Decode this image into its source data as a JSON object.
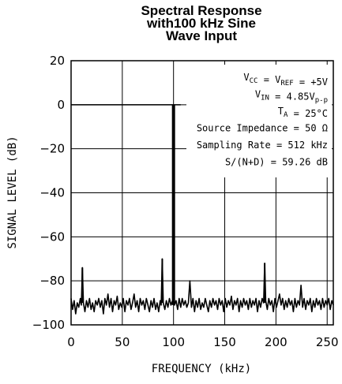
{
  "chart_data": {
    "type": "line",
    "title_lines": [
      "Spectral Response",
      "with100 kHz Sine",
      "Wave Input"
    ],
    "xlabel": "FREQUENCY (kHz)",
    "ylabel": "SIGNAL LEVEL (dB)",
    "xlim": [
      0,
      256
    ],
    "ylim": [
      -100,
      20
    ],
    "xticks": [
      0,
      50,
      100,
      150,
      200,
      250
    ],
    "yticks": [
      20,
      0,
      -20,
      -40,
      -60,
      -80,
      -100
    ],
    "grid": true,
    "annotations": [
      {
        "parts": [
          {
            "t": "V"
          },
          {
            "t": "CC",
            "sub": true
          },
          {
            "t": " = V"
          },
          {
            "t": "REF",
            "sub": true
          },
          {
            "t": " = +5V"
          }
        ]
      },
      {
        "parts": [
          {
            "t": "V"
          },
          {
            "t": "IN",
            "sub": true
          },
          {
            "t": " = 4.85V"
          },
          {
            "t": "p-p",
            "sub": true
          }
        ]
      },
      {
        "parts": [
          {
            "t": "T"
          },
          {
            "t": "A",
            "sub": true
          },
          {
            "t": " = 25°C"
          }
        ]
      },
      {
        "parts": [
          {
            "t": "Source Impedance = 50 Ω"
          }
        ]
      },
      {
        "parts": [
          {
            "t": "Sampling Rate = 512 kHz"
          }
        ]
      },
      {
        "parts": [
          {
            "t": "S/(N+D) = 59.26 dB"
          }
        ]
      }
    ],
    "series": [
      {
        "fundamental": {
          "x": 100,
          "y": 0
        },
        "fundamental_floor_line": [
          [
            0,
            0
          ],
          [
            107,
            0
          ]
        ],
        "spurs": [
          {
            "x": 11,
            "y": -74
          },
          {
            "x": 89,
            "y": -70
          },
          {
            "x": 189,
            "y": -72
          }
        ],
        "noise_floor": [
          [
            0,
            -88
          ],
          [
            1.5,
            -93
          ],
          [
            3,
            -89
          ],
          [
            4.5,
            -95
          ],
          [
            6,
            -90
          ],
          [
            7.5,
            -92
          ],
          [
            9,
            -88
          ],
          [
            10,
            -91
          ],
          [
            11,
            -74
          ],
          [
            12,
            -90
          ],
          [
            13.5,
            -94
          ],
          [
            15,
            -89
          ],
          [
            16.5,
            -92
          ],
          [
            18,
            -88
          ],
          [
            19.5,
            -93
          ],
          [
            21,
            -90
          ],
          [
            22.5,
            -94
          ],
          [
            24,
            -89
          ],
          [
            25.5,
            -91
          ],
          [
            27,
            -88
          ],
          [
            28.5,
            -92
          ],
          [
            30,
            -89
          ],
          [
            31.5,
            -95
          ],
          [
            33,
            -88
          ],
          [
            34.5,
            -91
          ],
          [
            36,
            -86
          ],
          [
            37.5,
            -92
          ],
          [
            39,
            -88
          ],
          [
            40.5,
            -94
          ],
          [
            42,
            -89
          ],
          [
            43.5,
            -91
          ],
          [
            45,
            -87
          ],
          [
            46.5,
            -93
          ],
          [
            48,
            -90
          ],
          [
            49.5,
            -92
          ],
          [
            51,
            -88
          ],
          [
            52.5,
            -94
          ],
          [
            54,
            -89
          ],
          [
            55.5,
            -91
          ],
          [
            57,
            -88
          ],
          [
            58.5,
            -93
          ],
          [
            60,
            -90
          ],
          [
            61.5,
            -86
          ],
          [
            63,
            -92
          ],
          [
            64.5,
            -89
          ],
          [
            66,
            -94
          ],
          [
            67.5,
            -88
          ],
          [
            69,
            -91
          ],
          [
            70.5,
            -89
          ],
          [
            72,
            -93
          ],
          [
            73.5,
            -88
          ],
          [
            75,
            -91
          ],
          [
            76.5,
            -94
          ],
          [
            78,
            -89
          ],
          [
            79.5,
            -92
          ],
          [
            81,
            -88
          ],
          [
            82.5,
            -93
          ],
          [
            84,
            -90
          ],
          [
            85.5,
            -94
          ],
          [
            87,
            -89
          ],
          [
            88,
            -91
          ],
          [
            89,
            -70
          ],
          [
            90,
            -90
          ],
          [
            91.5,
            -93
          ],
          [
            93,
            -89
          ],
          [
            94.5,
            -92
          ],
          [
            96,
            -88
          ],
          [
            97.5,
            -91
          ],
          [
            99,
            -89
          ],
          [
            100,
            -90
          ],
          [
            101,
            -91
          ],
          [
            102.5,
            -89
          ],
          [
            104,
            -93
          ],
          [
            105.5,
            -88
          ],
          [
            107,
            -92
          ],
          [
            108.5,
            -88
          ],
          [
            110,
            -91
          ],
          [
            111.5,
            -89
          ],
          [
            113,
            -92
          ],
          [
            114.5,
            -90
          ],
          [
            116,
            -80
          ],
          [
            117.5,
            -92
          ],
          [
            119,
            -88
          ],
          [
            120.5,
            -94
          ],
          [
            122,
            -89
          ],
          [
            123.5,
            -92
          ],
          [
            125,
            -88
          ],
          [
            126.5,
            -93
          ],
          [
            128,
            -90
          ],
          [
            129.5,
            -92
          ],
          [
            131,
            -88
          ],
          [
            132.5,
            -91
          ],
          [
            134,
            -94
          ],
          [
            135.5,
            -89
          ],
          [
            137,
            -92
          ],
          [
            138.5,
            -88
          ],
          [
            140,
            -91
          ],
          [
            141.5,
            -89
          ],
          [
            143,
            -93
          ],
          [
            144.5,
            -88
          ],
          [
            146,
            -91
          ],
          [
            147.5,
            -89
          ],
          [
            149,
            -94
          ],
          [
            150.5,
            -88
          ],
          [
            152,
            -92
          ],
          [
            153.5,
            -89
          ],
          [
            155,
            -91
          ],
          [
            156.5,
            -87
          ],
          [
            158,
            -93
          ],
          [
            159.5,
            -89
          ],
          [
            161,
            -91
          ],
          [
            162.5,
            -88
          ],
          [
            164,
            -94
          ],
          [
            165.5,
            -89
          ],
          [
            167,
            -92
          ],
          [
            168.5,
            -88
          ],
          [
            170,
            -91
          ],
          [
            171.5,
            -89
          ],
          [
            173,
            -93
          ],
          [
            174.5,
            -88
          ],
          [
            176,
            -92
          ],
          [
            177.5,
            -89
          ],
          [
            179,
            -91
          ],
          [
            180.5,
            -88
          ],
          [
            182,
            -94
          ],
          [
            183.5,
            -89
          ],
          [
            185,
            -92
          ],
          [
            186.5,
            -88
          ],
          [
            188,
            -90
          ],
          [
            189,
            -72
          ],
          [
            190,
            -89
          ],
          [
            191.5,
            -93
          ],
          [
            193,
            -88
          ],
          [
            194.5,
            -91
          ],
          [
            196,
            -89
          ],
          [
            197.5,
            -94
          ],
          [
            199,
            -88
          ],
          [
            200.5,
            -92
          ],
          [
            202,
            -89
          ],
          [
            203.5,
            -86
          ],
          [
            205,
            -91
          ],
          [
            206.5,
            -88
          ],
          [
            208,
            -93
          ],
          [
            209.5,
            -89
          ],
          [
            211,
            -92
          ],
          [
            212.5,
            -88
          ],
          [
            214,
            -91
          ],
          [
            215.5,
            -89
          ],
          [
            217,
            -94
          ],
          [
            218.5,
            -88
          ],
          [
            220,
            -92
          ],
          [
            221.5,
            -89
          ],
          [
            223,
            -91
          ],
          [
            224.5,
            -82
          ],
          [
            226,
            -92
          ],
          [
            227.5,
            -88
          ],
          [
            229,
            -93
          ],
          [
            230.5,
            -89
          ],
          [
            232,
            -91
          ],
          [
            233.5,
            -88
          ],
          [
            235,
            -94
          ],
          [
            236.5,
            -89
          ],
          [
            238,
            -92
          ],
          [
            239.5,
            -88
          ],
          [
            241,
            -91
          ],
          [
            242.5,
            -89
          ],
          [
            244,
            -93
          ],
          [
            245.5,
            -88
          ],
          [
            247,
            -92
          ],
          [
            248.5,
            -89
          ],
          [
            250,
            -91
          ],
          [
            251.5,
            -88
          ],
          [
            253,
            -93
          ],
          [
            254.5,
            -89
          ],
          [
            256,
            -91
          ]
        ]
      }
    ]
  }
}
